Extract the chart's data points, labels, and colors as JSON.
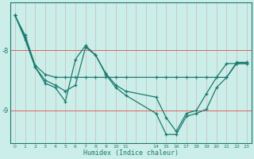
{
  "xlabel": "Humidex (Indice chaleur)",
  "bg_color": "#cceee8",
  "line_color": "#1a7a6e",
  "xlim": [
    -0.5,
    23.5
  ],
  "ylim": [
    -9.55,
    -7.2
  ],
  "yticks": [
    -9,
    -8
  ],
  "lines": {
    "line1_x": [
      0,
      1,
      2,
      3,
      4,
      5,
      6,
      7,
      8,
      9,
      10,
      11,
      14,
      15,
      16,
      17,
      18,
      19,
      20,
      21,
      22,
      23
    ],
    "line1_y": [
      -7.42,
      -7.75,
      -8.25,
      -8.4,
      -8.45,
      -8.45,
      -8.45,
      -8.45,
      -8.45,
      -8.45,
      -8.45,
      -8.45,
      -8.45,
      -8.45,
      -8.45,
      -8.45,
      -8.45,
      -8.45,
      -8.45,
      -8.45,
      -8.2,
      -8.2
    ],
    "line2_x": [
      0,
      1,
      2,
      3,
      4,
      5,
      6,
      7,
      8,
      9,
      10,
      11,
      14,
      15,
      16,
      17,
      18,
      19,
      20,
      21,
      22,
      23
    ],
    "line2_y": [
      -7.42,
      -7.78,
      -8.28,
      -8.55,
      -8.62,
      -8.85,
      -8.15,
      -7.92,
      -8.08,
      -8.4,
      -8.62,
      -8.75,
      -9.05,
      -9.4,
      -9.4,
      -9.1,
      -9.05,
      -8.98,
      -8.62,
      -8.45,
      -8.22,
      -8.22
    ],
    "line3_x": [
      0,
      1,
      2,
      3,
      4,
      5,
      6,
      7,
      8,
      9,
      10,
      11,
      14,
      15,
      16,
      17,
      18,
      19,
      20,
      21,
      22,
      23
    ],
    "line3_y": [
      -7.42,
      -7.82,
      -8.28,
      -8.5,
      -8.58,
      -8.68,
      -8.58,
      -7.95,
      -8.08,
      -8.38,
      -8.58,
      -8.68,
      -8.78,
      -9.12,
      -9.35,
      -9.05,
      -9.0,
      -8.72,
      -8.45,
      -8.22,
      -8.22,
      -8.22
    ]
  },
  "xtick_labels": [
    "0",
    "1",
    "2",
    "3",
    "4",
    "5",
    "6",
    "7",
    "8",
    "9",
    "10",
    "11",
    "",
    "",
    "14",
    "15",
    "16",
    "17",
    "18",
    "19",
    "20",
    "21",
    "22",
    "23"
  ]
}
